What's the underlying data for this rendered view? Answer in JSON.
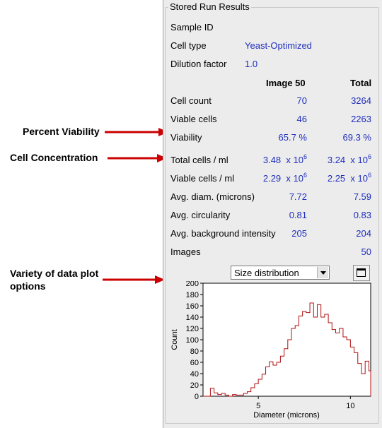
{
  "annotations": {
    "percent_viability": "Percent Viability",
    "cell_concentration": "Cell Concentration",
    "plot_options": "Variety of data plot options",
    "plot_options_line1": "Variety of data plot",
    "plot_options_line2": "options",
    "arrow_color": "#cc0000"
  },
  "panel": {
    "title": "Stored Run Results",
    "sample_id_label": "Sample ID",
    "cell_type_label": "Cell type",
    "cell_type_value": "Yeast-Optimized",
    "dilution_label": "Dilution factor",
    "dilution_value": "1.0",
    "col_image": "Image 50",
    "col_total": "Total",
    "rows": [
      {
        "label": "Cell count",
        "image": "70",
        "total": "3264"
      },
      {
        "label": "Viable cells",
        "image": "46",
        "total": "2263"
      },
      {
        "label": "Viability",
        "image": "65.7 %",
        "total": "69.3 %"
      },
      {
        "label": "Total cells / ml",
        "image": "3.48",
        "total": "3.24",
        "mult_image": "x 10",
        "mult_total": "x 10",
        "exp": "6"
      },
      {
        "label": "Viable cells / ml",
        "image": "2.29",
        "total": "2.25",
        "mult_image": "x 10",
        "mult_total": "x 10",
        "exp": "6"
      },
      {
        "label": "Avg. diam. (microns)",
        "image": "7.72",
        "total": "7.59"
      },
      {
        "label": "Avg. circularity",
        "image": "0.81",
        "total": "0.83"
      },
      {
        "label": "Avg. background intensity",
        "image": "205",
        "total": "204"
      }
    ],
    "images_label": "Images",
    "images_value": "50",
    "value_color": "#1f2ebd"
  },
  "plot_select": {
    "selected": "Size distribution"
  },
  "chart_data": {
    "type": "line",
    "title": "",
    "xlabel": "Diameter (microns)",
    "ylabel": "Count",
    "xlim": [
      2,
      11.1
    ],
    "ylim": [
      0,
      200
    ],
    "xticks": [
      5,
      10
    ],
    "yticks": [
      0,
      20,
      40,
      60,
      80,
      100,
      120,
      140,
      160,
      180,
      200
    ],
    "series_color": "#b01010",
    "step": true,
    "x": [
      2.0,
      2.2,
      2.4,
      2.6,
      2.8,
      3.0,
      3.2,
      3.4,
      3.6,
      3.8,
      4.0,
      4.2,
      4.4,
      4.6,
      4.8,
      5.0,
      5.2,
      5.4,
      5.6,
      5.8,
      6.0,
      6.2,
      6.4,
      6.6,
      6.8,
      7.0,
      7.2,
      7.4,
      7.6,
      7.8,
      8.0,
      8.2,
      8.4,
      8.6,
      8.8,
      9.0,
      9.2,
      9.4,
      9.6,
      9.8,
      10.0,
      10.2,
      10.4,
      10.6,
      10.8,
      11.0
    ],
    "y": [
      0,
      0,
      14,
      6,
      3,
      5,
      2,
      0,
      3,
      2,
      2,
      5,
      8,
      15,
      22,
      30,
      39,
      52,
      61,
      55,
      60,
      71,
      84,
      100,
      120,
      125,
      142,
      150,
      148,
      165,
      140,
      162,
      140,
      145,
      130,
      118,
      112,
      120,
      105,
      100,
      87,
      77,
      58,
      40,
      62,
      45
    ]
  }
}
